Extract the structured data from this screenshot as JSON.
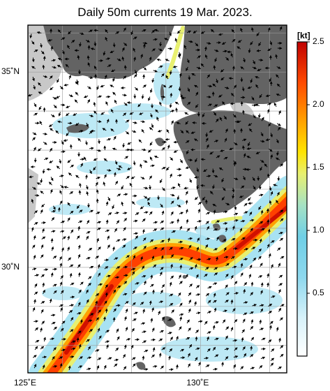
{
  "title": "Daily 50m currents 19 Mar. 2023.",
  "map": {
    "lon_range": [
      125,
      132.5
    ],
    "lat_range": [
      27.3,
      36.2
    ],
    "lon_ticks": [
      {
        "value": 125,
        "label": "125˚E"
      },
      {
        "value": 130,
        "label": "130˚E"
      }
    ],
    "lat_ticks": [
      {
        "value": 35,
        "label": "35˚N"
      },
      {
        "value": 30,
        "label": "30˚N"
      }
    ],
    "land_color": "#636363",
    "shallow_color": "#c8c8c8",
    "grid": true
  },
  "colorbar": {
    "unit": "[kt]",
    "range": [
      0,
      2.5
    ],
    "ticks": [
      {
        "value": 0.5,
        "label": "0.5"
      },
      {
        "value": 1.0,
        "label": "1.0"
      },
      {
        "value": 1.5,
        "label": "1.5"
      },
      {
        "value": 2.0,
        "label": "2.0"
      },
      {
        "value": 2.5,
        "label": "2.5"
      }
    ],
    "colors": [
      "#ffffff",
      "#a8e4f4",
      "#6fd0e8",
      "#9ee2c8",
      "#e8f070",
      "#ffe000",
      "#ff9a00",
      "#ff4000",
      "#e01000",
      "#b00000"
    ]
  }
}
